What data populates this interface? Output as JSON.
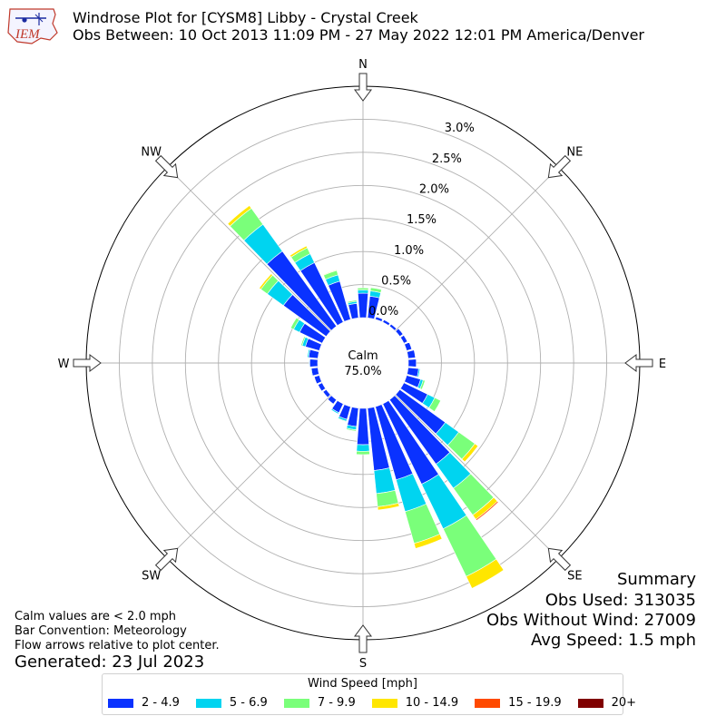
{
  "logo_text": "IEM",
  "header": {
    "title": "Windrose Plot for [CYSM8] Libby - Crystal Creek",
    "subtitle": "Obs Between: 10 Oct 2013 11:09 PM - 27 May 2022 12:01 PM America/Denver"
  },
  "summary": {
    "heading": "Summary",
    "obs_used": "Obs Used: 313035",
    "obs_without_wind": "Obs Without Wind: 27009",
    "avg_speed": "Avg Speed: 1.5 mph"
  },
  "notes": {
    "calm_def": "Calm values are < 2.0 mph",
    "bar_convention": "Bar Convention: Meteorology",
    "flow_arrows": "Flow arrows relative to plot center.",
    "generated": "Generated: 23 Jul 2023"
  },
  "chart_data": {
    "type": "windrose",
    "calm_label": "Calm",
    "calm_value": "75.0%",
    "radial_ticks": [
      "0.0%",
      "0.5%",
      "1.0%",
      "1.5%",
      "2.0%",
      "2.5%",
      "3.0%"
    ],
    "radial_tick_values": [
      0,
      0.5,
      1.0,
      1.5,
      2.0,
      2.5,
      3.0
    ],
    "radial_max": 3.5,
    "direction_labels": [
      "N",
      "NE",
      "E",
      "SE",
      "S",
      "SW",
      "W",
      "NW"
    ],
    "legend_title": "Wind Speed [mph]",
    "bins": [
      {
        "label": "2 - 4.9",
        "color": "#0a32ff"
      },
      {
        "label": "5 - 6.9",
        "color": "#00d4f0"
      },
      {
        "label": "7 - 9.9",
        "color": "#7aff7a"
      },
      {
        "label": "10 - 14.9",
        "color": "#ffe600"
      },
      {
        "label": "15 - 19.9",
        "color": "#ff4a00"
      },
      {
        "label": "20+",
        "color": "#800000"
      }
    ],
    "sectors": [
      {
        "dir": 0,
        "values": [
          0.37,
          0.05,
          0.03,
          0,
          0,
          0
        ]
      },
      {
        "dir": 10,
        "values": [
          0.33,
          0.08,
          0.05,
          0,
          0,
          0
        ]
      },
      {
        "dir": 20,
        "values": [
          0.04,
          0,
          0,
          0,
          0,
          0
        ]
      },
      {
        "dir": 30,
        "values": [
          0.04,
          0,
          0,
          0,
          0,
          0
        ]
      },
      {
        "dir": 40,
        "values": [
          0.04,
          0,
          0,
          0,
          0,
          0
        ]
      },
      {
        "dir": 50,
        "values": [
          0.06,
          0,
          0,
          0,
          0,
          0
        ]
      },
      {
        "dir": 60,
        "values": [
          0.06,
          0,
          0,
          0,
          0,
          0
        ]
      },
      {
        "dir": 70,
        "values": [
          0.08,
          0,
          0,
          0,
          0,
          0
        ]
      },
      {
        "dir": 80,
        "values": [
          0.11,
          0,
          0,
          0,
          0,
          0
        ]
      },
      {
        "dir": 90,
        "values": [
          0.12,
          0,
          0,
          0,
          0,
          0
        ]
      },
      {
        "dir": 100,
        "values": [
          0.16,
          0.02,
          0,
          0,
          0,
          0
        ]
      },
      {
        "dir": 110,
        "values": [
          0.22,
          0.04,
          0.03,
          0,
          0,
          0
        ]
      },
      {
        "dir": 120,
        "values": [
          0.4,
          0.12,
          0.1,
          0,
          0,
          0
        ]
      },
      {
        "dir": 130,
        "values": [
          0.85,
          0.25,
          0.3,
          0.06,
          0,
          0
        ]
      },
      {
        "dir": 140,
        "values": [
          1.2,
          0.45,
          0.5,
          0.08,
          0.02,
          0
        ]
      },
      {
        "dir": 150,
        "values": [
          1.35,
          0.75,
          0.8,
          0.2,
          0,
          0
        ]
      },
      {
        "dir": 160,
        "values": [
          1.15,
          0.5,
          0.5,
          0.08,
          0,
          0
        ]
      },
      {
        "dir": 170,
        "values": [
          0.95,
          0.35,
          0.2,
          0.05,
          0,
          0
        ]
      },
      {
        "dir": 180,
        "values": [
          0.55,
          0.1,
          0.05,
          0,
          0,
          0
        ]
      },
      {
        "dir": 190,
        "values": [
          0.28,
          0.05,
          0.02,
          0,
          0,
          0
        ]
      },
      {
        "dir": 200,
        "values": [
          0.2,
          0.03,
          0.01,
          0,
          0,
          0
        ]
      },
      {
        "dir": 210,
        "values": [
          0.15,
          0.02,
          0,
          0,
          0,
          0
        ]
      },
      {
        "dir": 220,
        "values": [
          0.08,
          0,
          0,
          0,
          0,
          0
        ]
      },
      {
        "dir": 230,
        "values": [
          0.06,
          0,
          0,
          0,
          0,
          0
        ]
      },
      {
        "dir": 240,
        "values": [
          0.07,
          0,
          0,
          0,
          0,
          0
        ]
      },
      {
        "dir": 250,
        "values": [
          0.08,
          0,
          0,
          0,
          0,
          0
        ]
      },
      {
        "dir": 260,
        "values": [
          0.1,
          0.01,
          0,
          0,
          0,
          0
        ]
      },
      {
        "dir": 270,
        "values": [
          0.12,
          0.01,
          0,
          0,
          0,
          0
        ]
      },
      {
        "dir": 280,
        "values": [
          0.14,
          0.02,
          0,
          0,
          0,
          0
        ]
      },
      {
        "dir": 290,
        "values": [
          0.22,
          0.05,
          0.02,
          0,
          0,
          0
        ]
      },
      {
        "dir": 300,
        "values": [
          0.38,
          0.1,
          0.05,
          0,
          0,
          0
        ]
      },
      {
        "dir": 310,
        "values": [
          0.8,
          0.3,
          0.12,
          0.03,
          0,
          0
        ]
      },
      {
        "dir": 320,
        "values": [
          1.4,
          0.5,
          0.3,
          0.05,
          0,
          0
        ]
      },
      {
        "dir": 330,
        "values": [
          1.0,
          0.15,
          0.1,
          0.03,
          0,
          0
        ]
      },
      {
        "dir": 340,
        "values": [
          0.6,
          0.1,
          0.07,
          0.01,
          0,
          0
        ]
      },
      {
        "dir": 350,
        "values": [
          0.22,
          0.03,
          0.02,
          0,
          0,
          0
        ]
      }
    ]
  }
}
